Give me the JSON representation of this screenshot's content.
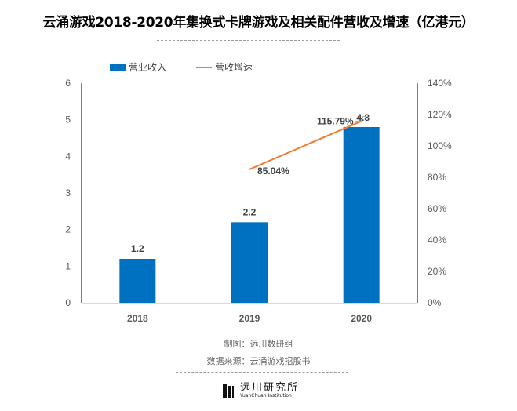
{
  "chart_data": {
    "type": "bar+line",
    "title": "云涌游戏2018-2020年集换式卡牌游戏及相关配件营收及增速（亿港元）",
    "categories": [
      "2018",
      "2019",
      "2020"
    ],
    "series": [
      {
        "name": "营业收入",
        "type": "bar",
        "axis": "left",
        "values": [
          1.2,
          2.2,
          4.8
        ],
        "labels": [
          "1.2",
          "2.2",
          "4.8"
        ],
        "color": "#0070c0"
      },
      {
        "name": "营收增速",
        "type": "line",
        "axis": "right",
        "values": [
          null,
          85.04,
          115.79
        ],
        "labels": [
          "",
          "85.04%",
          "115.79%"
        ],
        "color": "#ed7d31"
      }
    ],
    "y_left": {
      "range": [
        0,
        6
      ],
      "ticks": [
        "0",
        "1",
        "2",
        "3",
        "4",
        "5",
        "6"
      ]
    },
    "y_right": {
      "range": [
        0,
        140
      ],
      "ticks": [
        "0%",
        "20%",
        "40%",
        "60%",
        "80%",
        "100%",
        "120%",
        "140%"
      ]
    },
    "grid": false,
    "legend": "top-left"
  },
  "footer": {
    "maker": "制图：远川数研组",
    "source": "数据来源：云涌游戏招股书"
  },
  "logo": {
    "cn": "远川研究所",
    "en": "YuanChuan Institution"
  }
}
